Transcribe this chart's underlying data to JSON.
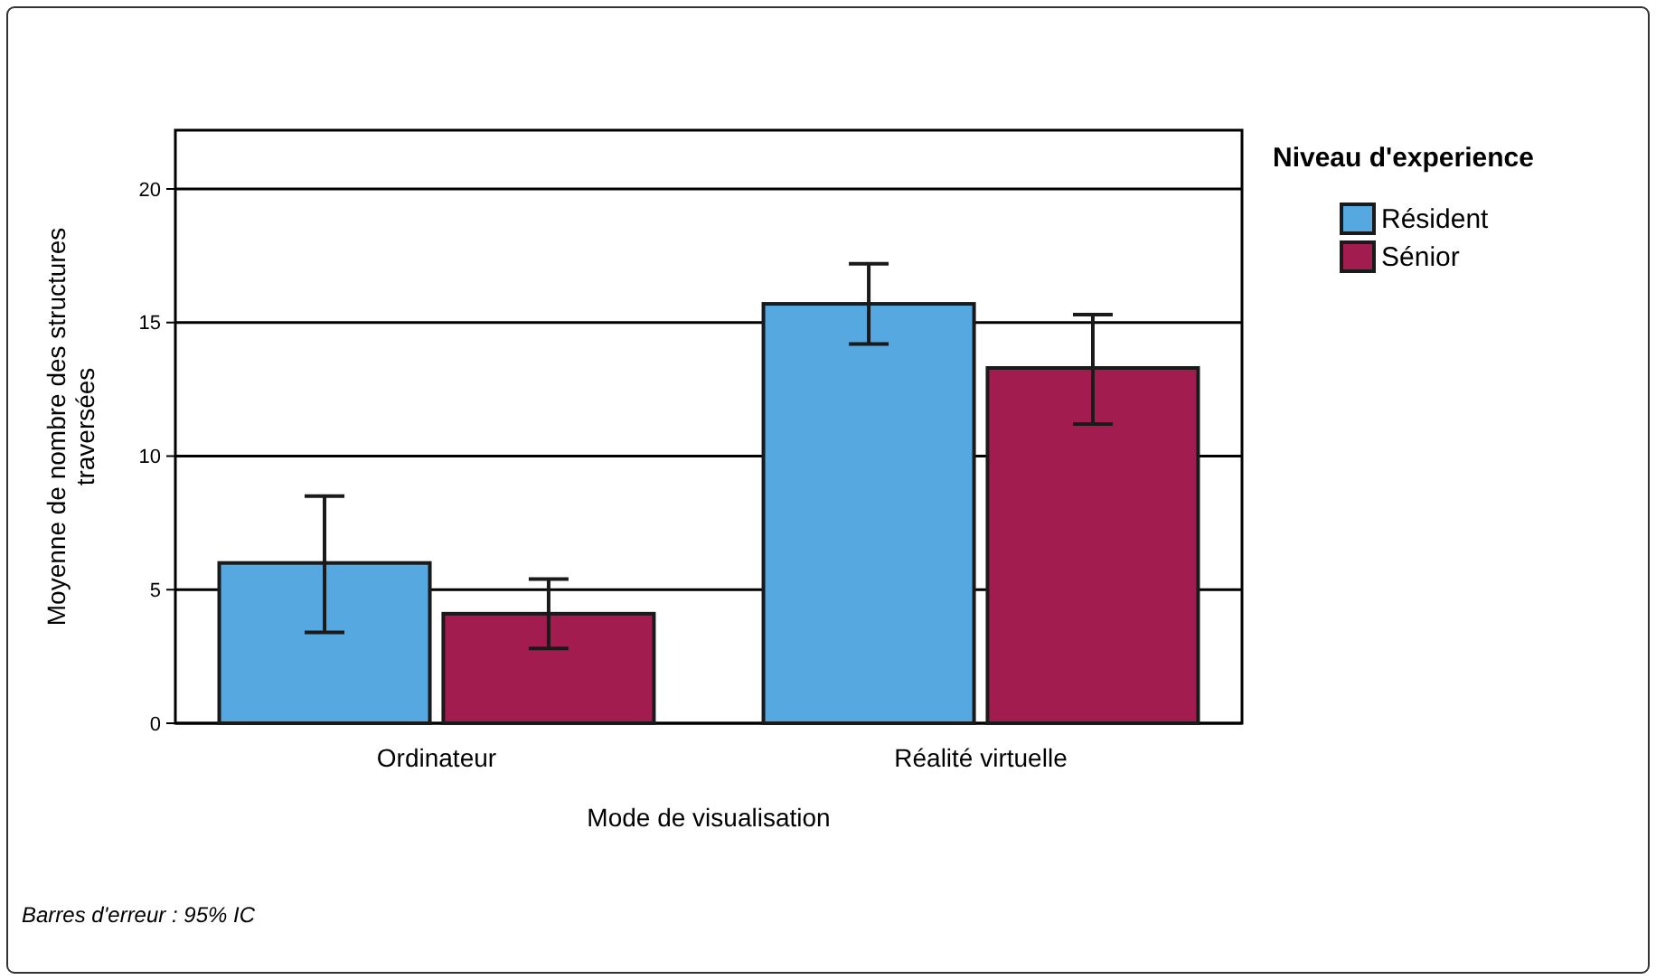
{
  "chart_data": {
    "type": "bar",
    "xlabel": "Mode de visualisation",
    "ylabel": "Moyenne de nombre des structures traversées",
    "legend_title": "Niveau d'experience",
    "categories": [
      "Ordinateur",
      "Réalité virtuelle"
    ],
    "series": [
      {
        "name": "Résident",
        "color": "#56a8e0",
        "values": [
          6.0,
          15.7
        ],
        "errors": [
          [
            3.4,
            8.5
          ],
          [
            14.2,
            17.2
          ]
        ]
      },
      {
        "name": "Sénior",
        "color": "#a31c4f",
        "values": [
          4.1,
          13.3
        ],
        "errors": [
          [
            2.8,
            5.4
          ],
          [
            11.2,
            15.3
          ]
        ]
      }
    ],
    "ylim": [
      0,
      22.2
    ],
    "yticks": [
      0,
      5,
      10,
      15,
      20
    ],
    "grid": "y",
    "legend": "top right",
    "annotations": [
      "Barres d'erreur : 95% IC"
    ]
  }
}
